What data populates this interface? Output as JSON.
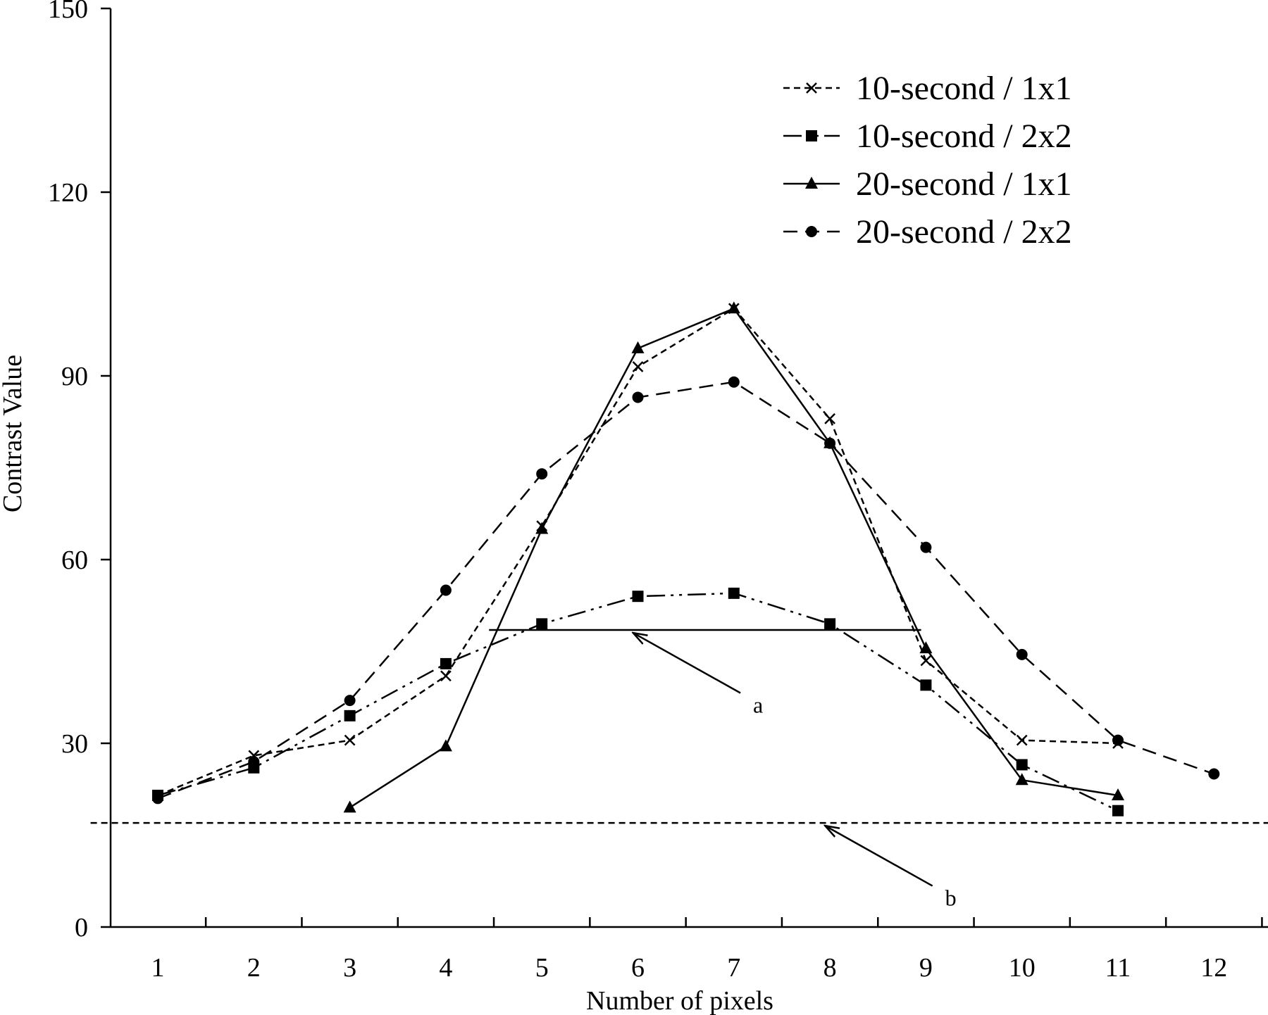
{
  "chart_data": {
    "type": "line",
    "xlabel": "Number of pixels",
    "ylabel": "Contrast Value",
    "xlim": [
      0.5,
      12.5
    ],
    "ylim": [
      0,
      150
    ],
    "x_ticks": [
      1,
      2,
      3,
      4,
      5,
      6,
      7,
      8,
      9,
      10,
      11,
      12
    ],
    "y_ticks": [
      0,
      30,
      60,
      90,
      120,
      150
    ],
    "grid": false,
    "legend_position": "top-right",
    "series": [
      {
        "name": "10-second / 1x1",
        "marker": "x",
        "line_style": "short-dash",
        "points": [
          [
            1,
            21.5
          ],
          [
            2,
            28
          ],
          [
            3,
            30.5
          ],
          [
            4,
            41
          ],
          [
            5,
            65.5
          ],
          [
            6,
            91.5
          ],
          [
            7,
            101
          ],
          [
            8,
            83
          ],
          [
            9,
            43.5
          ],
          [
            10,
            30.5
          ],
          [
            11,
            30
          ]
        ]
      },
      {
        "name": "10-second / 2x2",
        "marker": "square",
        "line_style": "dash-dot-dot",
        "points": [
          [
            1,
            21.5
          ],
          [
            2,
            26
          ],
          [
            3,
            34.5
          ],
          [
            4,
            43
          ],
          [
            5,
            49.5
          ],
          [
            6,
            54
          ],
          [
            7,
            54.5
          ],
          [
            8,
            49.5
          ],
          [
            9,
            39.5
          ],
          [
            10,
            26.5
          ],
          [
            11,
            19
          ]
        ]
      },
      {
        "name": "20-second / 1x1",
        "marker": "triangle",
        "line_style": "solid",
        "points": [
          [
            3,
            19.5
          ],
          [
            4,
            29.5
          ],
          [
            5,
            65
          ],
          [
            6,
            94.5
          ],
          [
            7,
            101
          ],
          [
            8,
            79
          ],
          [
            9,
            45.5
          ],
          [
            10,
            24
          ],
          [
            11,
            21.5
          ]
        ]
      },
      {
        "name": "20-second / 2x2",
        "marker": "circle",
        "line_style": "long-dash",
        "points": [
          [
            1,
            21
          ],
          [
            2,
            27
          ],
          [
            3,
            37
          ],
          [
            4,
            55
          ],
          [
            5,
            74
          ],
          [
            6,
            86.5
          ],
          [
            7,
            89
          ],
          [
            8,
            79
          ],
          [
            9,
            62
          ],
          [
            10,
            44.5
          ],
          [
            11,
            30.5
          ],
          [
            12,
            25
          ]
        ]
      }
    ],
    "reference_lines": [
      {
        "label": "a",
        "style": "solid",
        "y": 48.5,
        "x_range": [
          4.45,
          8.95
        ],
        "arrow_tip": [
          5.95,
          48.5
        ],
        "label_at": [
          7.2,
          35
        ]
      },
      {
        "label": "b",
        "style": "short-dash",
        "y": 17,
        "x_range": [
          0.3,
          12.6
        ],
        "arrow_tip": [
          7.95,
          17
        ],
        "label_at": [
          9.2,
          3.5
        ]
      }
    ],
    "colors": {
      "ink": "#000000",
      "background": "#ffffff"
    }
  }
}
